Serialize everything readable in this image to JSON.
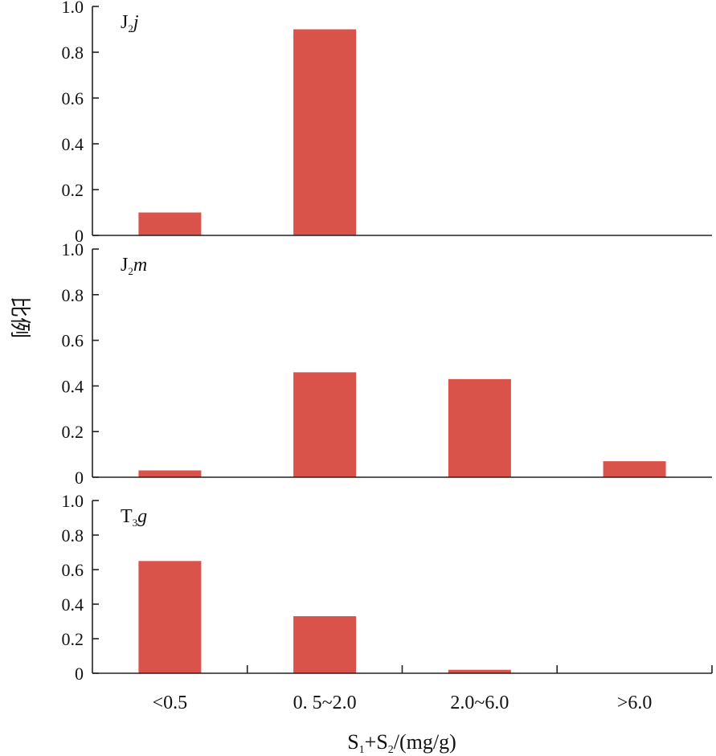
{
  "chart_data": {
    "type": "bar",
    "categories": [
      "<0.5",
      "0. 5~2.0",
      "2.0~6.0",
      ">6.0"
    ],
    "xlabel": "S₁+S₂/(mg/g)",
    "ylabel": "比例",
    "ylim": [
      0,
      1.0
    ],
    "yticks": [
      "0",
      "0.2",
      "0.4",
      "0.6",
      "0.8",
      "1.0"
    ],
    "bar_color": "#D9534A",
    "panels": [
      {
        "label_main": "J",
        "label_sub": "2",
        "label_italic": "j",
        "values": [
          0.1,
          0.9,
          0.0,
          0.0
        ]
      },
      {
        "label_main": "J",
        "label_sub": "2",
        "label_italic": "m",
        "values": [
          0.03,
          0.46,
          0.43,
          0.07
        ]
      },
      {
        "label_main": "T",
        "label_sub": "3",
        "label_italic": "g",
        "values": [
          0.65,
          0.33,
          0.02,
          0.0
        ]
      }
    ]
  }
}
